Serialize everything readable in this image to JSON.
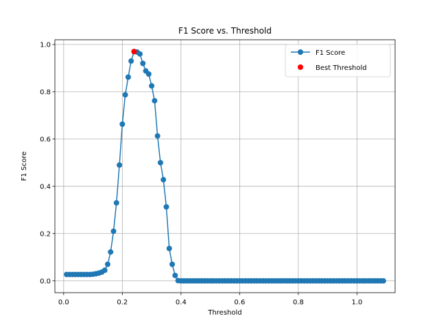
{
  "chart_data": {
    "type": "line",
    "title": "F1 Score vs. Threshold",
    "xlabel": "Threshold",
    "ylabel": "F1 Score",
    "xlim": [
      -0.03,
      1.13
    ],
    "ylim": [
      -0.05,
      1.02
    ],
    "xticks": [
      0.0,
      0.2,
      0.4,
      0.6,
      0.8,
      1.0
    ],
    "xtick_labels": [
      "0.0",
      "0.2",
      "0.4",
      "0.6",
      "0.8",
      "1.0"
    ],
    "yticks": [
      0.0,
      0.2,
      0.4,
      0.6,
      0.8,
      1.0
    ],
    "ytick_labels": [
      "0.0",
      "0.2",
      "0.4",
      "0.6",
      "0.8",
      "1.0"
    ],
    "grid": true,
    "legend_position": "top-right",
    "series": [
      {
        "name": "F1 Score",
        "color": "#1f77b4",
        "marker": "circle",
        "x": [
          0.01,
          0.02,
          0.03,
          0.04,
          0.05,
          0.06,
          0.07,
          0.08,
          0.09,
          0.1,
          0.11,
          0.12,
          0.13,
          0.14,
          0.15,
          0.16,
          0.17,
          0.18,
          0.19,
          0.2,
          0.21,
          0.22,
          0.23,
          0.24,
          0.25,
          0.26,
          0.27,
          0.28,
          0.29,
          0.3,
          0.31,
          0.32,
          0.33,
          0.34,
          0.35,
          0.36,
          0.37,
          0.38,
          0.39,
          0.4,
          0.41,
          0.42,
          0.43,
          0.44,
          0.45,
          0.46,
          0.47,
          0.48,
          0.49,
          0.5,
          0.51,
          0.52,
          0.53,
          0.54,
          0.55,
          0.56,
          0.57,
          0.58,
          0.59,
          0.6,
          0.61,
          0.62,
          0.63,
          0.64,
          0.65,
          0.66,
          0.67,
          0.68,
          0.69,
          0.7,
          0.71,
          0.72,
          0.73,
          0.74,
          0.75,
          0.76,
          0.77,
          0.78,
          0.79,
          0.8,
          0.81,
          0.82,
          0.83,
          0.84,
          0.85,
          0.86,
          0.87,
          0.88,
          0.89,
          0.9,
          0.91,
          0.92,
          0.93,
          0.94,
          0.95,
          0.96,
          0.97,
          0.98,
          0.99,
          1.0,
          1.01,
          1.02,
          1.03,
          1.04,
          1.05,
          1.06,
          1.07,
          1.08,
          1.09
        ],
        "y": [
          0.027,
          0.027,
          0.027,
          0.027,
          0.027,
          0.027,
          0.027,
          0.027,
          0.027,
          0.028,
          0.03,
          0.033,
          0.037,
          0.045,
          0.07,
          0.122,
          0.21,
          0.33,
          0.49,
          0.663,
          0.787,
          0.862,
          0.93,
          0.97,
          0.968,
          0.96,
          0.92,
          0.888,
          0.875,
          0.825,
          0.762,
          0.613,
          0.5,
          0.428,
          0.313,
          0.137,
          0.07,
          0.023,
          0.001,
          0,
          0,
          0,
          0,
          0,
          0,
          0,
          0,
          0,
          0,
          0,
          0,
          0,
          0,
          0,
          0,
          0,
          0,
          0,
          0,
          0,
          0,
          0,
          0,
          0,
          0,
          0,
          0,
          0,
          0,
          0,
          0,
          0,
          0,
          0,
          0,
          0,
          0,
          0,
          0,
          0,
          0,
          0,
          0,
          0,
          0,
          0,
          0,
          0,
          0,
          0,
          0,
          0,
          0,
          0,
          0,
          0,
          0,
          0,
          0,
          0,
          0,
          0,
          0,
          0,
          0,
          0,
          0,
          0,
          0
        ]
      },
      {
        "name": "Best Threshold",
        "type": "scatter",
        "color": "#ff0000",
        "marker": "circle",
        "x": [
          0.24
        ],
        "y": [
          0.97
        ]
      }
    ]
  }
}
